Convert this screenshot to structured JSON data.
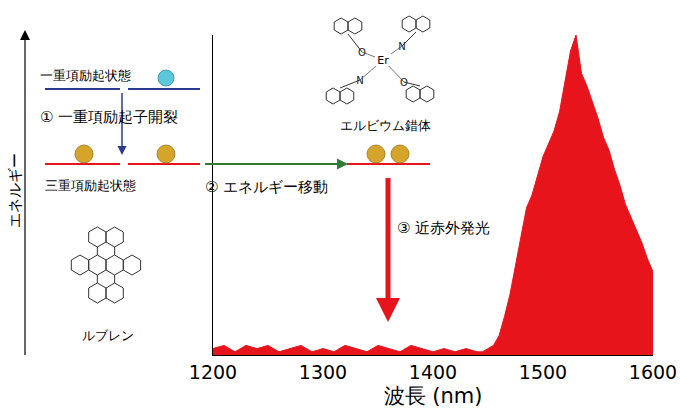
{
  "chart_data": {
    "type": "area",
    "x_label": "波長 (nm)",
    "x": [
      1200,
      1210,
      1220,
      1230,
      1240,
      1250,
      1260,
      1270,
      1280,
      1290,
      1300,
      1310,
      1320,
      1330,
      1340,
      1350,
      1360,
      1370,
      1380,
      1390,
      1400,
      1410,
      1420,
      1430,
      1440,
      1445,
      1450,
      1455,
      1460,
      1465,
      1470,
      1475,
      1480,
      1485,
      1490,
      1495,
      1500,
      1505,
      1510,
      1515,
      1520,
      1525,
      1530,
      1535,
      1540,
      1545,
      1550,
      1555,
      1560,
      1565,
      1570,
      1575,
      1580,
      1585,
      1590,
      1595,
      1600
    ],
    "values": [
      0.02,
      0.03,
      0.01,
      0.03,
      0.02,
      0.03,
      0.01,
      0.02,
      0.03,
      0.01,
      0.02,
      0.01,
      0.03,
      0.02,
      0.01,
      0.03,
      0.02,
      0.01,
      0.03,
      0.02,
      0.01,
      0.02,
      0.01,
      0.02,
      0.01,
      0.01,
      0.02,
      0.03,
      0.06,
      0.12,
      0.19,
      0.28,
      0.38,
      0.46,
      0.5,
      0.56,
      0.62,
      0.66,
      0.7,
      0.76,
      0.85,
      0.95,
      1.0,
      0.88,
      0.84,
      0.79,
      0.74,
      0.68,
      0.64,
      0.58,
      0.53,
      0.47,
      0.43,
      0.39,
      0.35,
      0.3,
      0.26
    ],
    "color": "#e8141c",
    "xlim": [
      1200,
      1600
    ],
    "xticks": [
      1200,
      1300,
      1400,
      1500,
      1600
    ],
    "ylim": [
      0,
      1
    ],
    "tick_labels": "x",
    "grid": false
  },
  "diagram": {
    "y_axis_label": "エネルギー",
    "levels": {
      "singlet": "一重項励起状態",
      "triplet": "三重項励起状態"
    },
    "steps": [
      "① 一重項励起子開裂",
      "② エネルギー移動",
      "③ 近赤外発光"
    ],
    "molecules": {
      "rubrene": "ルブレン",
      "erbium_complex": "エルビウム錯体"
    },
    "complex_atoms": {
      "metal": "Er",
      "oxygen": "O",
      "nitrogen": "N"
    }
  }
}
